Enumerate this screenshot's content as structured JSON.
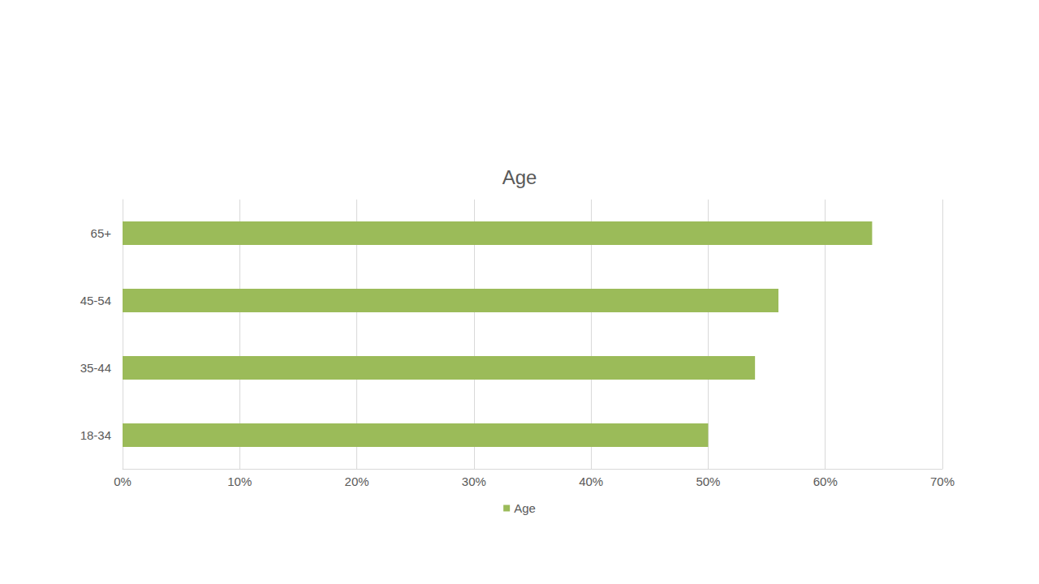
{
  "chart_data": {
    "type": "bar",
    "title": "Age",
    "orientation": "horizontal",
    "categories": [
      "18-34",
      "35-44",
      "45-54",
      "65+"
    ],
    "series": [
      {
        "name": "Age",
        "color": "#9bbb59",
        "values": [
          50,
          54,
          56,
          64
        ]
      }
    ],
    "xlim": [
      0,
      70
    ],
    "xticks": [
      {
        "value": 0,
        "label": "0%"
      },
      {
        "value": 10,
        "label": "10%"
      },
      {
        "value": 20,
        "label": "20%"
      },
      {
        "value": 30,
        "label": "30%"
      },
      {
        "value": 40,
        "label": "40%"
      },
      {
        "value": 50,
        "label": "50%"
      },
      {
        "value": 60,
        "label": "60%"
      },
      {
        "value": 70,
        "label": "70%"
      }
    ],
    "grid": true,
    "legend": "bottom"
  }
}
